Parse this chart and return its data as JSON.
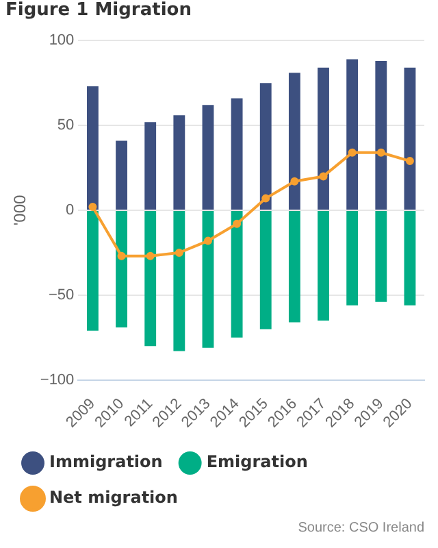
{
  "chart_data": {
    "type": "bar",
    "title": "Figure 1 Migration",
    "ylabel": "'000",
    "categories": [
      "2009",
      "2010",
      "2011",
      "2012",
      "2013",
      "2014",
      "2015",
      "2016",
      "2017",
      "2018",
      "2019",
      "2020"
    ],
    "series": [
      {
        "name": "Immigration",
        "color": "#3d5080",
        "values": [
          73,
          41,
          52,
          56,
          62,
          66,
          75,
          81,
          84,
          89,
          88,
          84
        ]
      },
      {
        "name": "Emigration",
        "color": "#00ae86",
        "values": [
          -71,
          -69,
          -80,
          -83,
          -81,
          -75,
          -70,
          -66,
          -65,
          -56,
          -54,
          -56
        ]
      },
      {
        "name": "Net migration",
        "type": "line",
        "color": "#f7a030",
        "values": [
          2,
          -27,
          -27,
          -25,
          -18,
          -8,
          7,
          17,
          20,
          34,
          34,
          29
        ]
      }
    ],
    "stacked": true,
    "ylim": [
      -100,
      100
    ],
    "yticks": [
      -100,
      -50,
      0,
      50,
      100
    ],
    "grid": "y",
    "legend": "bottom",
    "marker": "circle",
    "line_style": "solid",
    "annotations": [
      "Source: CSO Ireland"
    ]
  }
}
